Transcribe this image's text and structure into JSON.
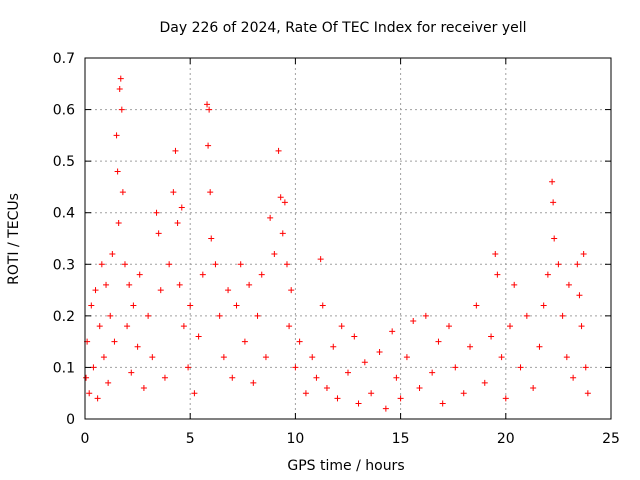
{
  "chart_data": {
    "type": "scatter",
    "title": "Day 226 of 2024, Rate Of TEC Index for receiver yell",
    "xlabel": "GPS time / hours",
    "ylabel": "ROTI / TECUs",
    "xlim": [
      0,
      25
    ],
    "ylim": [
      0,
      0.7
    ],
    "xticks": [
      0,
      5,
      10,
      15,
      20,
      25
    ],
    "yticks": [
      0,
      0.1,
      0.2,
      0.3,
      0.4,
      0.5,
      0.6,
      0.7
    ],
    "xtick_labels": [
      "0",
      "5",
      "10",
      "15",
      "20",
      "25"
    ],
    "ytick_labels": [
      "0",
      "0.1",
      "0.2",
      "0.3",
      "0.4",
      "0.5",
      "0.6",
      "0.7"
    ],
    "grid": true,
    "marker": "+",
    "color": "#ff0000",
    "series": [
      {
        "name": "yell",
        "points": [
          [
            0.05,
            0.08
          ],
          [
            0.1,
            0.15
          ],
          [
            0.2,
            0.05
          ],
          [
            0.3,
            0.22
          ],
          [
            0.4,
            0.1
          ],
          [
            0.5,
            0.25
          ],
          [
            0.6,
            0.04
          ],
          [
            0.7,
            0.18
          ],
          [
            0.8,
            0.3
          ],
          [
            0.9,
            0.12
          ],
          [
            1.0,
            0.26
          ],
          [
            1.1,
            0.07
          ],
          [
            1.2,
            0.2
          ],
          [
            1.3,
            0.32
          ],
          [
            1.4,
            0.15
          ],
          [
            1.5,
            0.55
          ],
          [
            1.55,
            0.48
          ],
          [
            1.6,
            0.38
          ],
          [
            1.65,
            0.64
          ],
          [
            1.7,
            0.66
          ],
          [
            1.75,
            0.6
          ],
          [
            1.8,
            0.44
          ],
          [
            1.9,
            0.3
          ],
          [
            2.0,
            0.18
          ],
          [
            2.1,
            0.26
          ],
          [
            2.2,
            0.09
          ],
          [
            2.3,
            0.22
          ],
          [
            2.5,
            0.14
          ],
          [
            2.6,
            0.28
          ],
          [
            2.8,
            0.06
          ],
          [
            3.0,
            0.2
          ],
          [
            3.2,
            0.12
          ],
          [
            3.4,
            0.4
          ],
          [
            3.5,
            0.36
          ],
          [
            3.6,
            0.25
          ],
          [
            3.8,
            0.08
          ],
          [
            4.0,
            0.3
          ],
          [
            4.2,
            0.44
          ],
          [
            4.3,
            0.52
          ],
          [
            4.4,
            0.38
          ],
          [
            4.5,
            0.26
          ],
          [
            4.6,
            0.41
          ],
          [
            4.7,
            0.18
          ],
          [
            4.9,
            0.1
          ],
          [
            5.0,
            0.22
          ],
          [
            5.2,
            0.05
          ],
          [
            5.4,
            0.16
          ],
          [
            5.6,
            0.28
          ],
          [
            5.8,
            0.61
          ],
          [
            5.85,
            0.53
          ],
          [
            5.9,
            0.6
          ],
          [
            5.95,
            0.44
          ],
          [
            6.0,
            0.35
          ],
          [
            6.2,
            0.3
          ],
          [
            6.4,
            0.2
          ],
          [
            6.6,
            0.12
          ],
          [
            6.8,
            0.25
          ],
          [
            7.0,
            0.08
          ],
          [
            7.2,
            0.22
          ],
          [
            7.4,
            0.3
          ],
          [
            7.6,
            0.15
          ],
          [
            7.8,
            0.26
          ],
          [
            8.0,
            0.07
          ],
          [
            8.2,
            0.2
          ],
          [
            8.4,
            0.28
          ],
          [
            8.6,
            0.12
          ],
          [
            8.8,
            0.39
          ],
          [
            9.0,
            0.32
          ],
          [
            9.2,
            0.52
          ],
          [
            9.3,
            0.43
          ],
          [
            9.4,
            0.36
          ],
          [
            9.5,
            0.42
          ],
          [
            9.6,
            0.3
          ],
          [
            9.7,
            0.18
          ],
          [
            9.8,
            0.25
          ],
          [
            10.0,
            0.1
          ],
          [
            10.2,
            0.15
          ],
          [
            10.5,
            0.05
          ],
          [
            10.8,
            0.12
          ],
          [
            11.0,
            0.08
          ],
          [
            11.2,
            0.31
          ],
          [
            11.3,
            0.22
          ],
          [
            11.5,
            0.06
          ],
          [
            11.8,
            0.14
          ],
          [
            12.0,
            0.04
          ],
          [
            12.2,
            0.18
          ],
          [
            12.5,
            0.09
          ],
          [
            12.8,
            0.16
          ],
          [
            13.0,
            0.03
          ],
          [
            13.3,
            0.11
          ],
          [
            13.6,
            0.05
          ],
          [
            14.0,
            0.13
          ],
          [
            14.3,
            0.02
          ],
          [
            14.6,
            0.17
          ],
          [
            14.8,
            0.08
          ],
          [
            15.0,
            0.04
          ],
          [
            15.3,
            0.12
          ],
          [
            15.6,
            0.19
          ],
          [
            15.9,
            0.06
          ],
          [
            16.2,
            0.2
          ],
          [
            16.5,
            0.09
          ],
          [
            16.8,
            0.15
          ],
          [
            17.0,
            0.03
          ],
          [
            17.3,
            0.18
          ],
          [
            17.6,
            0.1
          ],
          [
            18.0,
            0.05
          ],
          [
            18.3,
            0.14
          ],
          [
            18.6,
            0.22
          ],
          [
            19.0,
            0.07
          ],
          [
            19.3,
            0.16
          ],
          [
            19.5,
            0.32
          ],
          [
            19.6,
            0.28
          ],
          [
            19.8,
            0.12
          ],
          [
            20.0,
            0.04
          ],
          [
            20.2,
            0.18
          ],
          [
            20.4,
            0.26
          ],
          [
            20.7,
            0.1
          ],
          [
            21.0,
            0.2
          ],
          [
            21.3,
            0.06
          ],
          [
            21.6,
            0.14
          ],
          [
            21.8,
            0.22
          ],
          [
            22.0,
            0.28
          ],
          [
            22.2,
            0.46
          ],
          [
            22.25,
            0.42
          ],
          [
            22.3,
            0.35
          ],
          [
            22.5,
            0.3
          ],
          [
            22.7,
            0.2
          ],
          [
            22.9,
            0.12
          ],
          [
            23.0,
            0.26
          ],
          [
            23.2,
            0.08
          ],
          [
            23.4,
            0.3
          ],
          [
            23.5,
            0.24
          ],
          [
            23.6,
            0.18
          ],
          [
            23.7,
            0.32
          ],
          [
            23.8,
            0.1
          ],
          [
            23.9,
            0.05
          ]
        ]
      }
    ]
  }
}
